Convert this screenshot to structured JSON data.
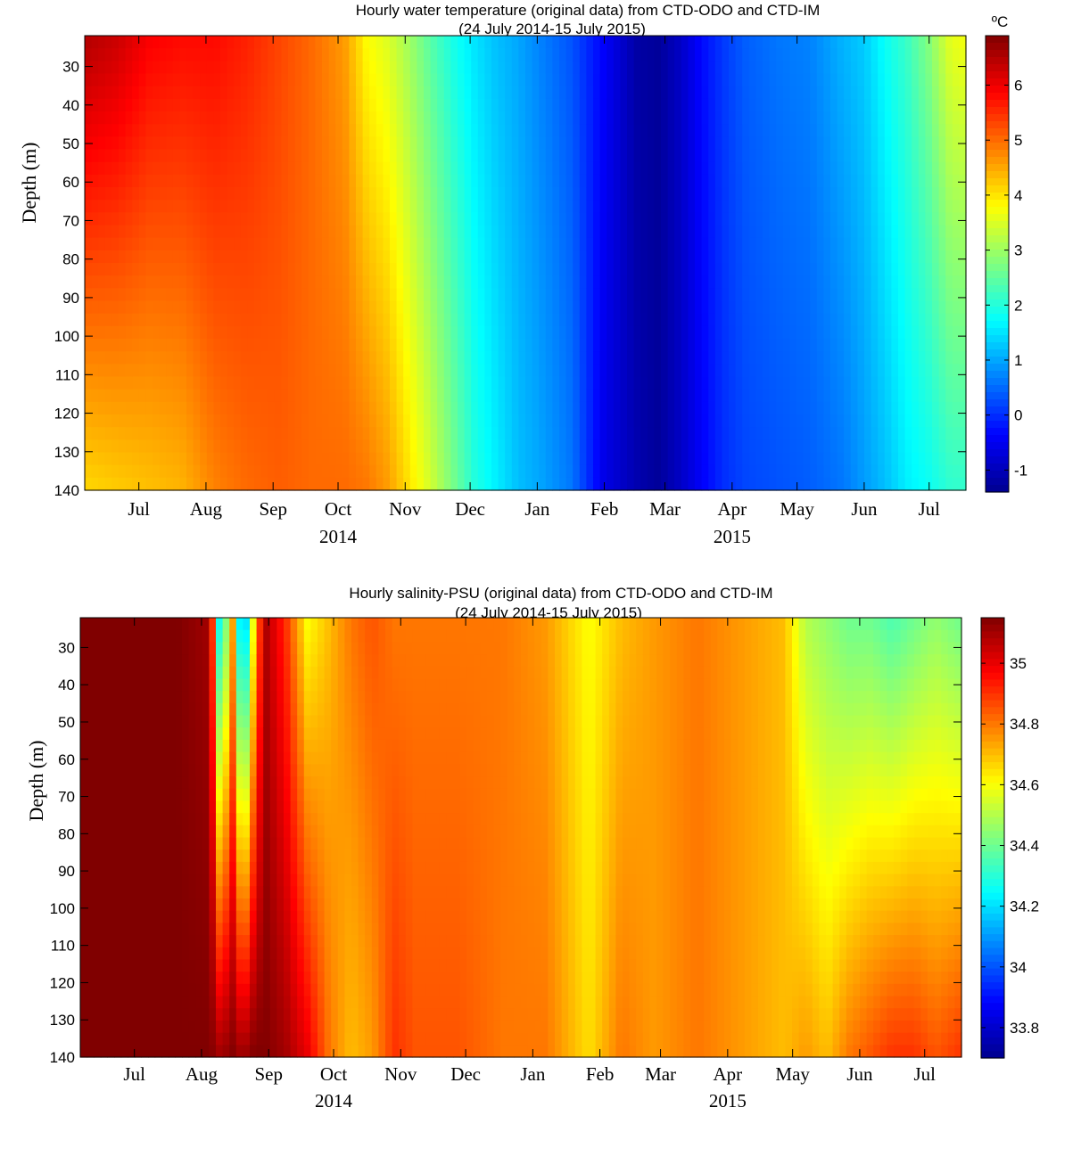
{
  "colors": {
    "jet": [
      "#00008f",
      "#0000ff",
      "#00ffff",
      "#ffff00",
      "#ff0000",
      "#800000"
    ]
  },
  "chart_data": [
    {
      "type": "heatmap",
      "id": "temperature",
      "title": "Hourly water temperature (original data) from CTD-ODO and CTD-IM",
      "subtitle": "(24 July 2014-15 July 2015)",
      "ylabel": "Depth (m)",
      "colorbar_label": "ºC",
      "ylim": [
        22,
        140
      ],
      "y_reversed": true,
      "yticks": [
        30,
        40,
        50,
        60,
        70,
        80,
        90,
        100,
        110,
        120,
        130,
        140
      ],
      "xlim_days": [
        -25,
        382
      ],
      "x_origin": "2014-07-01",
      "xtick_days": [
        0,
        31,
        62,
        92,
        123,
        153,
        184,
        215,
        243,
        274,
        304,
        335,
        365
      ],
      "xtick_labels": [
        "Jul",
        "Aug",
        "Sep",
        "Oct",
        "Nov",
        "Dec",
        "Jan",
        "Feb",
        "Mar",
        "Apr",
        "May",
        "Jun",
        "Jul"
      ],
      "year_labels": [
        {
          "label": "2014",
          "day": 92
        },
        {
          "label": "2015",
          "day": 274
        }
      ],
      "clim": [
        -1.4,
        6.9
      ],
      "colorbar_ticks": [
        -1,
        0,
        1,
        2,
        3,
        4,
        5,
        6
      ],
      "profile_days": [
        -25,
        -10,
        5,
        20,
        35,
        50,
        65,
        80,
        95,
        105,
        115,
        125,
        135,
        145,
        155,
        165,
        175,
        185,
        200,
        215,
        230,
        240,
        250,
        260,
        270,
        280,
        295,
        310,
        325,
        335,
        345,
        355,
        365,
        375,
        382
      ],
      "surface_values": [
        6.5,
        6.3,
        5.9,
        5.8,
        5.8,
        5.6,
        5.3,
        5.0,
        4.6,
        3.8,
        3.5,
        3.0,
        2.4,
        1.9,
        1.5,
        1.2,
        1.0,
        0.7,
        0.3,
        -0.4,
        -1.2,
        -1.3,
        -0.9,
        -0.3,
        0.1,
        0.4,
        0.6,
        0.7,
        1.1,
        1.3,
        1.8,
        2.2,
        2.8,
        3.6,
        3.7
      ],
      "deep_values": [
        4.1,
        4.2,
        4.3,
        4.4,
        4.8,
        5.0,
        5.1,
        5.0,
        5.0,
        4.9,
        4.6,
        4.0,
        3.4,
        2.7,
        2.0,
        1.6,
        1.2,
        1.0,
        0.6,
        -0.6,
        -1.1,
        -1.3,
        -0.9,
        -0.4,
        0.0,
        0.2,
        0.3,
        0.4,
        0.6,
        0.9,
        1.2,
        1.6,
        1.8,
        2.1,
        2.1
      ]
    },
    {
      "type": "heatmap",
      "id": "salinity",
      "title": "Hourly salinity-PSU (original data) from CTD-ODO and CTD-IM",
      "subtitle": "(24 July 2014-15 July 2015)",
      "ylabel": "Depth (m)",
      "colorbar_label": "",
      "ylim": [
        22,
        140
      ],
      "y_reversed": true,
      "yticks": [
        30,
        40,
        50,
        60,
        70,
        80,
        90,
        100,
        110,
        120,
        130,
        140
      ],
      "xlim_days": [
        -25,
        382
      ],
      "x_origin": "2014-07-01",
      "xtick_days": [
        0,
        31,
        62,
        92,
        123,
        153,
        184,
        215,
        243,
        274,
        304,
        335,
        365
      ],
      "xtick_labels": [
        "Jul",
        "Aug",
        "Sep",
        "Oct",
        "Nov",
        "Dec",
        "Jan",
        "Feb",
        "Mar",
        "Apr",
        "May",
        "Jun",
        "Jul"
      ],
      "year_labels": [
        {
          "label": "2014",
          "day": 92
        },
        {
          "label": "2015",
          "day": 274
        }
      ],
      "clim": [
        33.7,
        35.15
      ],
      "colorbar_ticks": [
        33.8,
        34,
        34.2,
        34.4,
        34.6,
        34.8,
        35
      ],
      "profile_days": [
        -25,
        0,
        20,
        35,
        40,
        45,
        50,
        55,
        60,
        70,
        80,
        90,
        100,
        110,
        120,
        130,
        150,
        170,
        190,
        210,
        225,
        240,
        260,
        280,
        300,
        310,
        320,
        330,
        340,
        350,
        360,
        370,
        382
      ],
      "surface_values": [
        35.15,
        35.15,
        35.15,
        35.1,
        34.1,
        34.8,
        34.0,
        34.6,
        35.1,
        34.9,
        34.6,
        34.7,
        34.8,
        34.85,
        34.8,
        34.8,
        34.8,
        34.8,
        34.75,
        34.6,
        34.7,
        34.75,
        34.8,
        34.75,
        34.7,
        34.5,
        34.45,
        34.4,
        34.4,
        34.35,
        34.4,
        34.45,
        34.4
      ],
      "deep_values": [
        35.15,
        35.15,
        35.15,
        35.15,
        35.1,
        35.15,
        35.1,
        35.15,
        35.15,
        35.1,
        35.0,
        34.8,
        34.7,
        34.75,
        34.9,
        34.85,
        34.85,
        34.8,
        34.8,
        34.65,
        34.8,
        34.75,
        34.8,
        34.75,
        34.7,
        34.75,
        34.7,
        34.8,
        34.85,
        34.9,
        34.9,
        34.85,
        34.9
      ]
    }
  ]
}
